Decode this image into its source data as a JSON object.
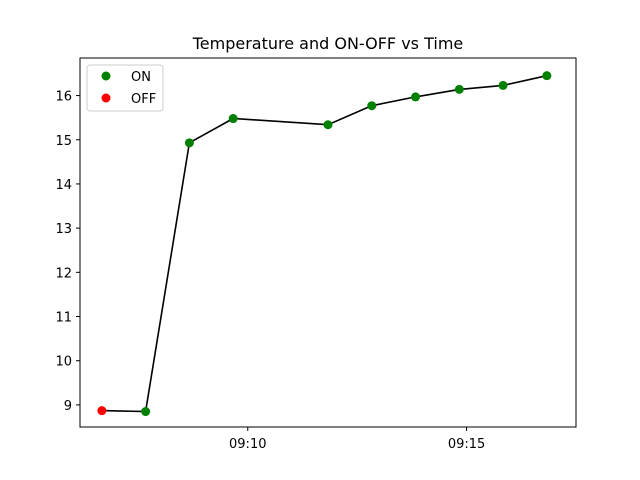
{
  "chart_data": {
    "type": "line",
    "title": "Temperature and ON-OFF vs Time",
    "xlabel": "",
    "ylabel": "",
    "x_ticks": [
      "09:10",
      "09:15"
    ],
    "x_tick_minutes": [
      10,
      15
    ],
    "y_ticks": [
      "9",
      "10",
      "11",
      "12",
      "13",
      "14",
      "15",
      "16"
    ],
    "xlim": [
      "09:06:10",
      "09:17:30"
    ],
    "ylim": [
      8.5,
      16.85
    ],
    "grid": false,
    "legend_position": "top-left",
    "line_color": "#000000",
    "legend": [
      {
        "label": "ON",
        "color": "#008000"
      },
      {
        "label": "OFF",
        "color": "#ff0000"
      }
    ],
    "points": [
      {
        "time": "09:06:40",
        "value": 8.87,
        "state": "OFF"
      },
      {
        "time": "09:07:40",
        "value": 8.85,
        "state": "ON"
      },
      {
        "time": "09:08:40",
        "value": 14.93,
        "state": "ON"
      },
      {
        "time": "09:09:40",
        "value": 15.48,
        "state": "ON"
      },
      {
        "time": "09:11:50",
        "value": 15.34,
        "state": "ON"
      },
      {
        "time": "09:12:50",
        "value": 15.77,
        "state": "ON"
      },
      {
        "time": "09:13:50",
        "value": 15.97,
        "state": "ON"
      },
      {
        "time": "09:14:50",
        "value": 16.14,
        "state": "ON"
      },
      {
        "time": "09:15:50",
        "value": 16.23,
        "state": "ON"
      },
      {
        "time": "09:16:50",
        "value": 16.45,
        "state": "ON"
      }
    ]
  }
}
